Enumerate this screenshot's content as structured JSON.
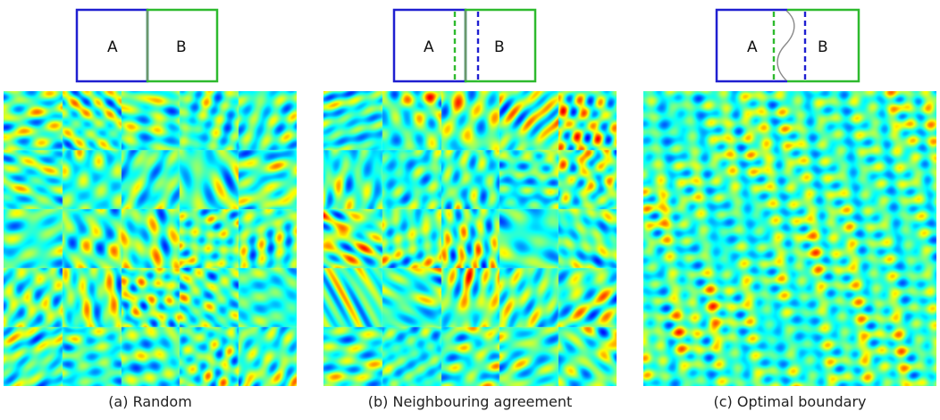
{
  "colors": {
    "region_a": "#1f1fd0",
    "region_b": "#2eba2e",
    "boundary": "#888888",
    "heatmap_low": "#1a1a8c",
    "heatmap_mid": "#3fb0e8",
    "heatmap_high": "#d8241a"
  },
  "panels": [
    {
      "label_a": "A",
      "label_b": "B",
      "caption": "(a) Random",
      "boundary": "straight",
      "seams": true,
      "seed": 11
    },
    {
      "label_a": "A",
      "label_b": "B",
      "caption": "(b) Neighbouring agreement",
      "boundary": "straight-dashed",
      "seams": true,
      "seed": 23
    },
    {
      "label_a": "A",
      "label_b": "B",
      "caption": "(c) Optimal boundary",
      "boundary": "curved-dashed",
      "seams": false,
      "seed": 37
    }
  ]
}
